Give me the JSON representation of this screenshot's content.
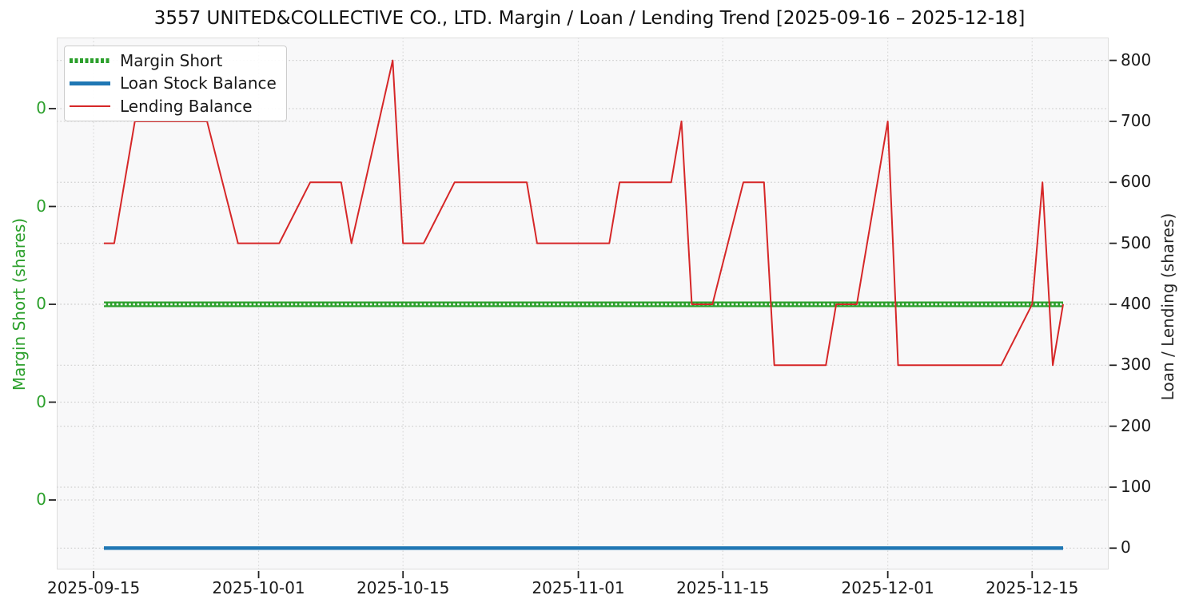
{
  "title": "3557 UNITED&COLLECTIVE CO., LTD. Margin / Loan / Lending Trend [2025-09-16 – 2025-12-18]",
  "legend": {
    "items": [
      {
        "label": "Margin Short",
        "color": "#2ca02c",
        "style": "thick-dashed"
      },
      {
        "label": "Loan Stock Balance",
        "color": "#1f77b4",
        "style": "thick-solid"
      },
      {
        "label": "Lending Balance",
        "color": "#d62728",
        "style": "thin-solid"
      }
    ]
  },
  "left_axis": {
    "label": "Margin Short (shares)",
    "color": "#2ca02c",
    "tick_labels": [
      "0",
      "0",
      "0",
      "0",
      "0"
    ]
  },
  "right_axis": {
    "label": "Loan / Lending (shares)",
    "color": "#262626",
    "tick_values": [
      800,
      700,
      600,
      500,
      400,
      300,
      200,
      100,
      0
    ]
  },
  "x_axis": {
    "tick_labels": [
      "2025-09-15",
      "2025-10-01",
      "2025-10-15",
      "2025-11-01",
      "2025-11-15",
      "2025-12-01",
      "2025-12-15"
    ]
  },
  "chart_data": {
    "type": "line",
    "title": "3557 UNITED&COLLECTIVE CO., LTD. Margin / Loan / Lending Trend [2025-09-16 – 2025-12-18]",
    "x_range": [
      "2025-09-16",
      "2025-12-18"
    ],
    "grid": true,
    "legend_position": "upper-left",
    "left_ylabel": "Margin Short (shares)",
    "right_ylabel": "Loan / Lending (shares)",
    "right_ylim": [
      0,
      800
    ],
    "series": [
      {
        "name": "Margin Short",
        "axis": "left",
        "color": "#2ca02c",
        "line": "thick-dashed",
        "points": [
          [
            "2025-09-16",
            0
          ],
          [
            "2025-12-18",
            0
          ]
        ]
      },
      {
        "name": "Loan Stock Balance",
        "axis": "right",
        "color": "#1f77b4",
        "line": "thick-solid",
        "points": [
          [
            "2025-09-16",
            0
          ],
          [
            "2025-12-18",
            0
          ]
        ]
      },
      {
        "name": "Lending Balance",
        "axis": "right",
        "color": "#d62728",
        "line": "thin-solid",
        "points": [
          [
            "2025-09-16",
            500
          ],
          [
            "2025-09-17",
            500
          ],
          [
            "2025-09-19",
            700
          ],
          [
            "2025-09-26",
            700
          ],
          [
            "2025-09-29",
            500
          ],
          [
            "2025-10-03",
            500
          ],
          [
            "2025-10-06",
            600
          ],
          [
            "2025-10-09",
            600
          ],
          [
            "2025-10-10",
            500
          ],
          [
            "2025-10-14",
            800
          ],
          [
            "2025-10-15",
            500
          ],
          [
            "2025-10-17",
            500
          ],
          [
            "2025-10-20",
            600
          ],
          [
            "2025-10-27",
            600
          ],
          [
            "2025-10-28",
            500
          ],
          [
            "2025-11-04",
            500
          ],
          [
            "2025-11-05",
            600
          ],
          [
            "2025-11-10",
            600
          ],
          [
            "2025-11-11",
            700
          ],
          [
            "2025-11-12",
            400
          ],
          [
            "2025-11-14",
            400
          ],
          [
            "2025-11-17",
            600
          ],
          [
            "2025-11-19",
            600
          ],
          [
            "2025-11-20",
            300
          ],
          [
            "2025-11-25",
            300
          ],
          [
            "2025-11-26",
            400
          ],
          [
            "2025-11-28",
            400
          ],
          [
            "2025-12-01",
            700
          ],
          [
            "2025-12-02",
            300
          ],
          [
            "2025-12-12",
            300
          ],
          [
            "2025-12-15",
            400
          ],
          [
            "2025-12-16",
            600
          ],
          [
            "2025-12-17",
            300
          ],
          [
            "2025-12-18",
            400
          ]
        ]
      }
    ]
  }
}
